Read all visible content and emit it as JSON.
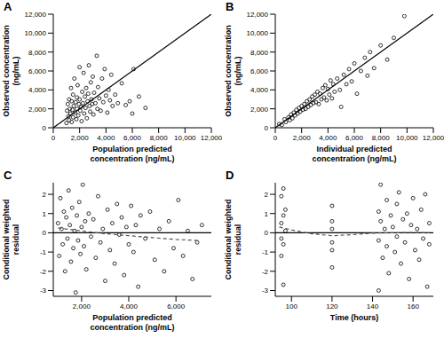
{
  "chart_data": [
    {
      "type": "scatter",
      "title": "A",
      "x_label": "Population predicted concentration (ng/mL)",
      "y_label": "Observed concentration (ng/mL)",
      "xlim": [
        0,
        12000
      ],
      "ylim": [
        0,
        12000
      ],
      "xticks": [
        0,
        {
          "value": 2000,
          "label": "2,000"
        },
        {
          "value": 4000,
          "label": "4,000"
        },
        {
          "value": 6000,
          "label": "6,000"
        },
        {
          "value": 8000,
          "label": "8,000"
        },
        {
          "value": 10000,
          "label": "10,000"
        },
        {
          "value": 12000,
          "label": "12,000"
        }
      ],
      "yticks": [
        0,
        {
          "value": 2000,
          "label": "2,000"
        },
        {
          "value": 4000,
          "label": "4,000"
        },
        {
          "value": 6000,
          "label": "6,000"
        },
        {
          "value": 8000,
          "label": "8,000"
        },
        {
          "value": 10000,
          "label": "10,000"
        },
        {
          "value": 12000,
          "label": "12,000"
        }
      ],
      "series": [
        {
          "type": "scatter",
          "marker": "circle",
          "color": "#000000",
          "x": [
            1000,
            1050,
            1100,
            1150,
            1200,
            1200,
            1250,
            1300,
            1350,
            1400,
            1400,
            1450,
            1500,
            1500,
            1550,
            1600,
            1650,
            1700,
            1750,
            1800,
            1800,
            1850,
            1900,
            1950,
            2000,
            2000,
            2050,
            2100,
            2150,
            2200,
            2250,
            2300,
            2350,
            2400,
            2450,
            2500,
            2550,
            2600,
            2650,
            2700,
            2750,
            2800,
            2850,
            2900,
            2950,
            3000,
            3050,
            3100,
            3200,
            3300,
            3350,
            3400,
            3500,
            3600,
            3700,
            3800,
            3900,
            4000,
            4100,
            4200,
            4300,
            4400,
            4500,
            4700,
            4900,
            5200,
            5500,
            5800,
            6000,
            6100,
            6500,
            7000
          ],
          "values": [
            500,
            1800,
            2500,
            1200,
            3000,
            800,
            2000,
            1500,
            4200,
            600,
            2800,
            1900,
            3500,
            1100,
            2300,
            5200,
            1600,
            2700,
            900,
            3200,
            2000,
            4500,
            1300,
            2500,
            6400,
            3000,
            1800,
            2200,
            700,
            3800,
            2600,
            5800,
            1500,
            3300,
            2100,
            4200,
            1000,
            2800,
            3600,
            6600,
            2300,
            1700,
            4800,
            3000,
            2500,
            5400,
            1400,
            3700,
            2600,
            7600,
            2000,
            4300,
            3100,
            1800,
            5200,
            2700,
            6200,
            3400,
            1600,
            4000,
            2900,
            5600,
            2300,
            3500,
            2600,
            4700,
            2400,
            2800,
            1500,
            6200,
            3300,
            2100
          ]
        },
        {
          "type": "line",
          "line_style": "solid",
          "color": "#000000",
          "x": [
            0,
            12000
          ],
          "values": [
            0,
            12000
          ]
        }
      ]
    },
    {
      "type": "scatter",
      "title": "B",
      "x_label": "Individual predicted concentration (ng/mL)",
      "y_label": "Observed concentration (ng/mL)",
      "xlim": [
        0,
        12000
      ],
      "ylim": [
        0,
        12000
      ],
      "xticks": [
        0,
        {
          "value": 2000,
          "label": "2,000"
        },
        {
          "value": 4000,
          "label": "4,000"
        },
        {
          "value": 6000,
          "label": "6,000"
        },
        {
          "value": 8000,
          "label": "8,000"
        },
        {
          "value": 10000,
          "label": "10,000"
        },
        {
          "value": 12000,
          "label": "12,000"
        }
      ],
      "yticks": [
        0,
        {
          "value": 2000,
          "label": "2,000"
        },
        {
          "value": 4000,
          "label": "4,000"
        },
        {
          "value": 6000,
          "label": "6,000"
        },
        {
          "value": 8000,
          "label": "8,000"
        },
        {
          "value": 10000,
          "label": "10,000"
        },
        {
          "value": 12000,
          "label": "12,000"
        }
      ],
      "series": [
        {
          "type": "scatter",
          "marker": "circle",
          "color": "#000000",
          "x": [
            300,
            500,
            700,
            800,
            1000,
            1100,
            1200,
            1300,
            1400,
            1500,
            1600,
            1700,
            1800,
            1900,
            2000,
            2100,
            2200,
            2300,
            2400,
            2500,
            2600,
            2700,
            2800,
            2900,
            3000,
            3100,
            3200,
            3300,
            3400,
            3500,
            3600,
            3700,
            3800,
            3900,
            4000,
            4100,
            4200,
            4300,
            4400,
            4500,
            4700,
            4900,
            5000,
            5200,
            5400,
            5600,
            5800,
            6000,
            6200,
            6500,
            6800,
            7000,
            7200,
            7500,
            8000,
            8500,
            9000,
            9800
          ],
          "values": [
            400,
            300,
            900,
            600,
            1100,
            800,
            1400,
            1000,
            1600,
            1300,
            1900,
            1500,
            2100,
            1700,
            2300,
            1900,
            2500,
            2000,
            2800,
            2200,
            3000,
            2400,
            3300,
            2600,
            3500,
            2700,
            3800,
            2500,
            3600,
            3000,
            4200,
            3200,
            4500,
            2900,
            4100,
            3500,
            5000,
            3100,
            4600,
            3800,
            5200,
            4000,
            2200,
            5600,
            4600,
            6200,
            4900,
            6800,
            3600,
            6000,
            7400,
            5500,
            8000,
            6300,
            8700,
            7200,
            9500,
            11800
          ]
        },
        {
          "type": "line",
          "line_style": "solid",
          "color": "#000000",
          "x": [
            0,
            12000
          ],
          "values": [
            0,
            12000
          ]
        }
      ]
    },
    {
      "type": "scatter",
      "title": "C",
      "x_label": "Population predicted concentration (ng/mL)",
      "y_label": "Conditional weighted residual",
      "xlim": [
        800,
        7500
      ],
      "ylim": [
        -3.3,
        2.6
      ],
      "xticks": [
        {
          "value": 2000,
          "label": "2,000"
        },
        {
          "value": 4000,
          "label": "4,000"
        },
        {
          "value": 6000,
          "label": "6,000"
        }
      ],
      "yticks": [
        -3,
        -2,
        -1,
        0,
        1,
        2
      ],
      "series": [
        {
          "type": "scatter",
          "marker": "circle",
          "color": "#000000",
          "x": [
            1000,
            1050,
            1100,
            1150,
            1200,
            1250,
            1300,
            1350,
            1400,
            1450,
            1500,
            1550,
            1600,
            1650,
            1700,
            1750,
            1800,
            1850,
            1900,
            1950,
            2000,
            2050,
            2100,
            2150,
            2200,
            2300,
            2400,
            2500,
            2600,
            2700,
            2800,
            2900,
            3000,
            3100,
            3200,
            3300,
            3400,
            3500,
            3600,
            3700,
            3800,
            3900,
            4000,
            4100,
            4200,
            4300,
            4400,
            4500,
            4700,
            4900,
            5100,
            5300,
            5500,
            5700,
            5900,
            6100,
            6300,
            6500,
            6700,
            6900,
            7100
          ],
          "values": [
            0.5,
            -1.2,
            1.8,
            0.2,
            -0.6,
            1.1,
            -2.0,
            0.8,
            -0.3,
            2.2,
            0.4,
            -1.5,
            1.3,
            -0.8,
            0.1,
            -3.1,
            0.9,
            -0.4,
            1.6,
            -1.1,
            0.3,
            2.5,
            -0.7,
            0.6,
            -1.9,
            1.0,
            -0.2,
            0.7,
            -1.3,
            1.9,
            -0.5,
            0.2,
            -2.5,
            1.2,
            -0.9,
            0.5,
            -1.6,
            1.5,
            -0.1,
            0.8,
            -2.2,
            0.3,
            -0.6,
            1.4,
            -1.0,
            0.4,
            -2.8,
            0.9,
            -0.3,
            1.1,
            -1.4,
            0.2,
            -2.0,
            0.6,
            -0.8,
            1.7,
            -1.2,
            0.1,
            -2.4,
            -0.5,
            0.4
          ]
        },
        {
          "type": "line",
          "line_style": "solid",
          "color": "#000000",
          "x": [
            800,
            7500
          ],
          "values": [
            0,
            0
          ]
        },
        {
          "type": "line",
          "line_style": "dashed",
          "color": "#555555",
          "x": [
            1000,
            2000,
            3000,
            4000,
            5000,
            6000,
            7000
          ],
          "values": [
            0.25,
            0.1,
            -0.05,
            -0.15,
            -0.25,
            -0.35,
            -0.4
          ]
        }
      ]
    },
    {
      "type": "scatter",
      "title": "D",
      "x_label": "Time (hours)",
      "y_label": "Conditional weighted residual",
      "xlim": [
        92,
        170
      ],
      "ylim": [
        -3.3,
        2.6
      ],
      "xticks": [
        100,
        120,
        140,
        160
      ],
      "yticks": [
        -3,
        -2,
        -1,
        0,
        1,
        2
      ],
      "series": [
        {
          "type": "scatter",
          "marker": "circle",
          "color": "#000000",
          "x": [
            95,
            95,
            95,
            95,
            96,
            96,
            96,
            96,
            97,
            97,
            120,
            120,
            120,
            120,
            120,
            120,
            143,
            143,
            143,
            144,
            144,
            145,
            146,
            147,
            147,
            148,
            149,
            150,
            151,
            152,
            152,
            153,
            154,
            155,
            156,
            157,
            158,
            159,
            160,
            161,
            162,
            163,
            164,
            165,
            166,
            167,
            168,
            168
          ],
          "values": [
            0.5,
            -1.2,
            1.9,
            -0.3,
            2.3,
            0.9,
            -2.7,
            -0.6,
            1.2,
            0.1,
            -0.5,
            0.6,
            -1.8,
            0.2,
            1.4,
            -0.9,
            -0.4,
            1.1,
            -3.0,
            0.6,
            2.5,
            -1.3,
            0.2,
            1.7,
            -0.7,
            -2.1,
            0.9,
            0.3,
            -1.0,
            1.5,
            -0.2,
            2.1,
            -1.6,
            0.7,
            -0.5,
            1.0,
            -2.4,
            0.4,
            1.8,
            -0.9,
            0.2,
            -1.4,
            1.2,
            -0.3,
            2.0,
            -2.8,
            0.5,
            -0.6
          ]
        },
        {
          "type": "line",
          "line_style": "solid",
          "color": "#000000",
          "x": [
            92,
            170
          ],
          "values": [
            0,
            0
          ]
        },
        {
          "type": "line",
          "line_style": "dashed",
          "color": "#555555",
          "x": [
            94,
            100,
            110,
            120,
            130,
            140,
            150,
            160,
            168
          ],
          "values": [
            0.3,
            0.15,
            -0.05,
            -0.15,
            -0.1,
            -0.02,
            0,
            0.02,
            0
          ]
        }
      ]
    }
  ]
}
